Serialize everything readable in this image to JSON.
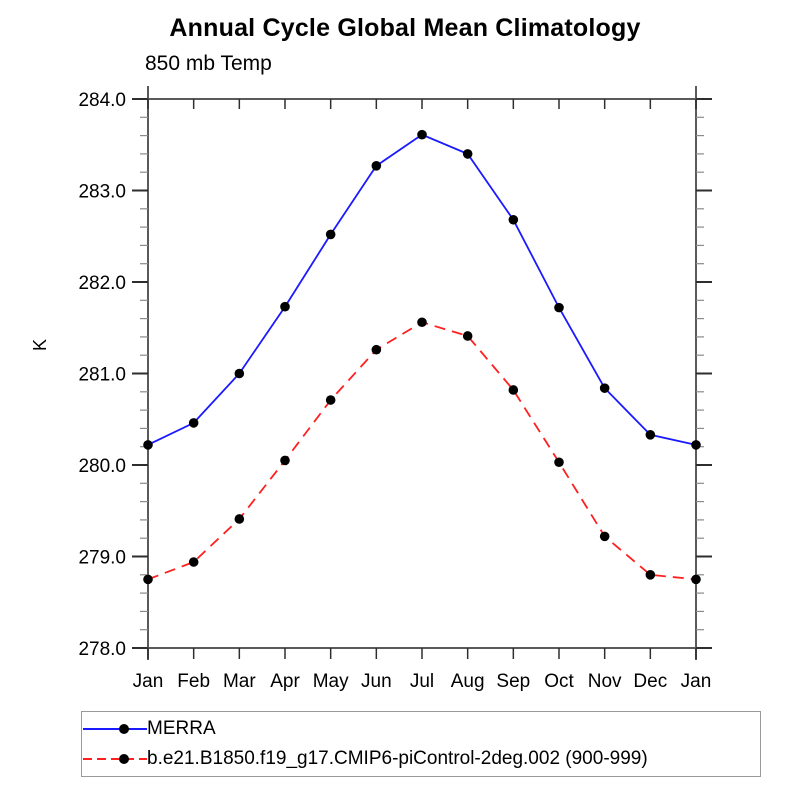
{
  "chart_data": {
    "type": "line",
    "title": "Annual Cycle Global Mean Climatology",
    "subtitle": "850 mb Temp",
    "ylabel": "K",
    "categories": [
      "Jan",
      "Feb",
      "Mar",
      "Apr",
      "May",
      "Jun",
      "Jul",
      "Aug",
      "Sep",
      "Oct",
      "Nov",
      "Dec",
      "Jan"
    ],
    "ylim": [
      278.0,
      284.0
    ],
    "ytick_step": 1.0,
    "yminor_step": 0.2,
    "ytick_format_decimals": 1,
    "grid": false,
    "legend_position": "bottom-left",
    "axis_color": "#5a5a5a",
    "tick_color": "#2e2e2e",
    "minor_tick_color": "#8a8a8a",
    "marker_color": "#000000",
    "series": [
      {
        "name": "MERRA",
        "color": "#1a1aff",
        "line_style": "solid",
        "marker": "filled-circle",
        "values": [
          280.22,
          280.46,
          281.0,
          281.73,
          282.52,
          283.27,
          283.61,
          283.4,
          282.68,
          281.72,
          280.84,
          280.33,
          280.22
        ]
      },
      {
        "name": "b.e21.B1850.f19_g17.CMIP6-piControl-2deg.002 (900-999)",
        "color": "#ff1f1f",
        "line_style": "dashed",
        "marker": "filled-circle",
        "values": [
          278.75,
          278.94,
          279.41,
          280.05,
          280.71,
          281.26,
          281.56,
          281.41,
          280.82,
          280.03,
          279.22,
          278.8,
          278.75
        ]
      }
    ]
  }
}
